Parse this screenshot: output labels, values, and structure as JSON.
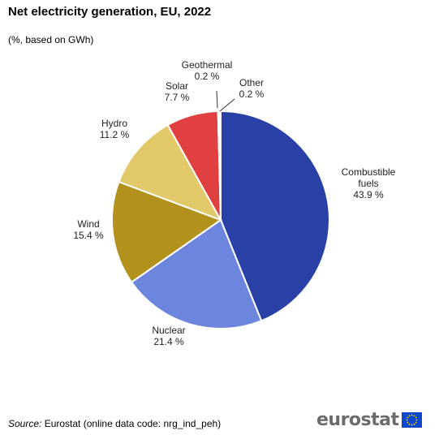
{
  "header": {
    "title": "Net electricity generation, EU, 2022",
    "subtitle": "(%, based on GWh)"
  },
  "chart_data": {
    "type": "pie",
    "title": "Net electricity generation, EU, 2022",
    "subtitle": "(%, based on GWh)",
    "slices": [
      {
        "name": "Combustible fuels",
        "label_lines": [
          "Combustible",
          "fuels"
        ],
        "value": 43.9,
        "value_label": "43.9 %",
        "color": "#2941a7"
      },
      {
        "name": "Nuclear",
        "label_lines": [
          "Nuclear"
        ],
        "value": 21.4,
        "value_label": "21.4 %",
        "color": "#6c85dd"
      },
      {
        "name": "Wind",
        "label_lines": [
          "Wind"
        ],
        "value": 15.4,
        "value_label": "15.4 %",
        "color": "#b2921d"
      },
      {
        "name": "Hydro",
        "label_lines": [
          "Hydro"
        ],
        "value": 11.2,
        "value_label": "11.2 %",
        "color": "#e1c869"
      },
      {
        "name": "Solar",
        "label_lines": [
          "Solar"
        ],
        "value": 7.7,
        "value_label": "7.7 %",
        "color": "#e04040"
      },
      {
        "name": "Geothermal",
        "label_lines": [
          "Geothermal"
        ],
        "value": 0.2,
        "value_label": "0.2 %",
        "color": "#b0a03a"
      },
      {
        "name": "Other",
        "label_lines": [
          "Other"
        ],
        "value": 0.2,
        "value_label": "0.2 %",
        "color": "#7f7f7f"
      }
    ],
    "start_angle": "top",
    "direction": "clockwise"
  },
  "footer": {
    "source_label": "Source:",
    "source_text": " Eurostat (online data code: nrg_ind_peh)"
  },
  "logo": {
    "text": "eurostat",
    "flag_color": "#0e47cb",
    "star_color": "#ffdd00"
  }
}
